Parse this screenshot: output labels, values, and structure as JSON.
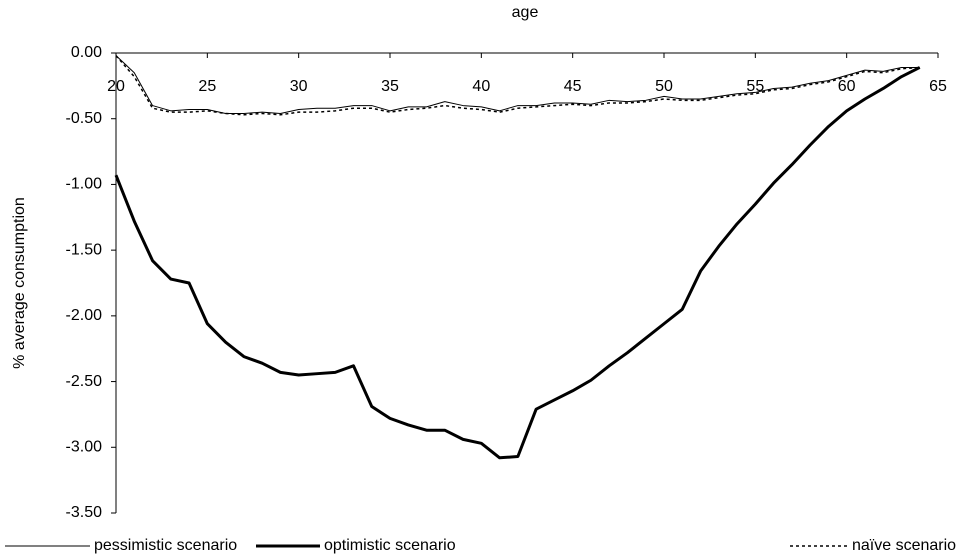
{
  "chart_data": {
    "type": "line",
    "title": "age",
    "y_label": "% average consumption",
    "x": [
      20,
      21,
      22,
      23,
      24,
      25,
      26,
      27,
      28,
      29,
      30,
      31,
      32,
      33,
      34,
      35,
      36,
      37,
      38,
      39,
      40,
      41,
      42,
      43,
      44,
      45,
      46,
      47,
      48,
      49,
      50,
      51,
      52,
      53,
      54,
      55,
      56,
      57,
      58,
      59,
      60,
      61,
      62,
      63,
      64
    ],
    "xlim": [
      20,
      65
    ],
    "xticks": [
      20,
      25,
      30,
      35,
      40,
      45,
      50,
      55,
      60,
      65
    ],
    "ylim": [
      -3.5,
      0
    ],
    "yticks": [
      {
        "value": 0,
        "label": "0.00"
      },
      {
        "value": -0.5,
        "label": "-0.50"
      },
      {
        "value": -1,
        "label": "-1.00"
      },
      {
        "value": -1.5,
        "label": "-1.50"
      },
      {
        "value": -2,
        "label": "-2.00"
      },
      {
        "value": -2.5,
        "label": "-2.50"
      },
      {
        "value": -3,
        "label": "-3.00"
      },
      {
        "value": -3.5,
        "label": "-3.50"
      }
    ],
    "legend": "bottom",
    "series": [
      {
        "name": "pessimistic scenario",
        "color": "#000000",
        "line_width": 1,
        "dash": "solid",
        "values": [
          -0.02,
          -0.15,
          -0.4,
          -0.44,
          -0.43,
          -0.43,
          -0.46,
          -0.46,
          -0.45,
          -0.46,
          -0.43,
          -0.42,
          -0.42,
          -0.4,
          -0.4,
          -0.44,
          -0.41,
          -0.41,
          -0.37,
          -0.4,
          -0.41,
          -0.44,
          -0.4,
          -0.4,
          -0.38,
          -0.38,
          -0.39,
          -0.36,
          -0.37,
          -0.36,
          -0.33,
          -0.35,
          -0.35,
          -0.33,
          -0.31,
          -0.3,
          -0.27,
          -0.26,
          -0.23,
          -0.21,
          -0.17,
          -0.13,
          -0.14,
          -0.11,
          -0.11
        ]
      },
      {
        "name": "optimistic scenario",
        "color": "#000000",
        "line_width": 3,
        "dash": "solid",
        "values": [
          -0.93,
          -1.28,
          -1.58,
          -1.72,
          -1.75,
          -2.06,
          -2.2,
          -2.31,
          -2.36,
          -2.43,
          -2.45,
          -2.44,
          -2.43,
          -2.38,
          -2.69,
          -2.78,
          -2.83,
          -2.87,
          -2.87,
          -2.94,
          -2.97,
          -3.08,
          -3.07,
          -2.71,
          -2.64,
          -2.57,
          -2.49,
          -2.38,
          -2.28,
          -2.17,
          -2.06,
          -1.95,
          -1.66,
          -1.47,
          -1.3,
          -1.15,
          -0.99,
          -0.85,
          -0.7,
          -0.56,
          -0.44,
          -0.35,
          -0.27,
          -0.18,
          -0.11
        ]
      },
      {
        "name": "naïve scenario",
        "color": "#000000",
        "line_width": 1.5,
        "dash": "dotted",
        "values": [
          -0.02,
          -0.18,
          -0.42,
          -0.45,
          -0.45,
          -0.44,
          -0.46,
          -0.47,
          -0.46,
          -0.47,
          -0.45,
          -0.45,
          -0.44,
          -0.42,
          -0.42,
          -0.45,
          -0.43,
          -0.42,
          -0.4,
          -0.42,
          -0.43,
          -0.45,
          -0.42,
          -0.41,
          -0.4,
          -0.39,
          -0.4,
          -0.38,
          -0.38,
          -0.37,
          -0.35,
          -0.36,
          -0.36,
          -0.34,
          -0.32,
          -0.31,
          -0.28,
          -0.27,
          -0.24,
          -0.22,
          -0.18,
          -0.14,
          -0.15,
          -0.12,
          -0.11
        ]
      }
    ]
  }
}
